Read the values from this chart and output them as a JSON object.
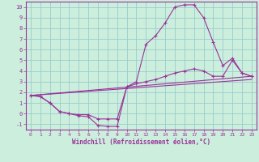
{
  "bg_color": "#cceedd",
  "line_color": "#993399",
  "grid_color": "#99cccc",
  "xlabel": "Windchill (Refroidissement éolien,°C)",
  "ylim": [
    -1.5,
    10.5
  ],
  "xlim": [
    -0.5,
    23.5
  ],
  "yticks": [
    -1,
    0,
    1,
    2,
    3,
    4,
    5,
    6,
    7,
    8,
    9,
    10
  ],
  "xticks": [
    0,
    1,
    2,
    3,
    4,
    5,
    6,
    7,
    8,
    9,
    10,
    11,
    12,
    13,
    14,
    15,
    16,
    17,
    18,
    19,
    20,
    21,
    22,
    23
  ],
  "line1_x": [
    0,
    1,
    2,
    3,
    4,
    5,
    6,
    7,
    8,
    9,
    10,
    11,
    12,
    13,
    14,
    15,
    16,
    17,
    18,
    19,
    20,
    21,
    22,
    23
  ],
  "line1_y": [
    1.7,
    1.6,
    1.0,
    0.2,
    0.0,
    -0.2,
    -0.3,
    -1.1,
    -1.2,
    -1.2,
    2.5,
    3.0,
    6.5,
    7.3,
    8.5,
    10.0,
    10.2,
    10.2,
    9.0,
    6.7,
    4.5,
    5.2,
    3.8,
    3.5
  ],
  "line2_x": [
    0,
    1,
    2,
    3,
    4,
    5,
    6,
    7,
    8,
    9,
    10,
    11,
    12,
    13,
    14,
    15,
    16,
    17,
    18,
    19,
    20,
    21,
    22,
    23
  ],
  "line2_y": [
    1.7,
    1.6,
    1.0,
    0.2,
    0.0,
    -0.1,
    -0.1,
    -0.5,
    -0.5,
    -0.5,
    2.5,
    2.8,
    3.0,
    3.2,
    3.5,
    3.8,
    4.0,
    4.2,
    4.0,
    3.5,
    3.5,
    5.0,
    3.8,
    3.5
  ],
  "line3_x": [
    0,
    23
  ],
  "line3_y": [
    1.7,
    3.5
  ],
  "line4_x": [
    0,
    23
  ],
  "line4_y": [
    1.7,
    3.2
  ]
}
